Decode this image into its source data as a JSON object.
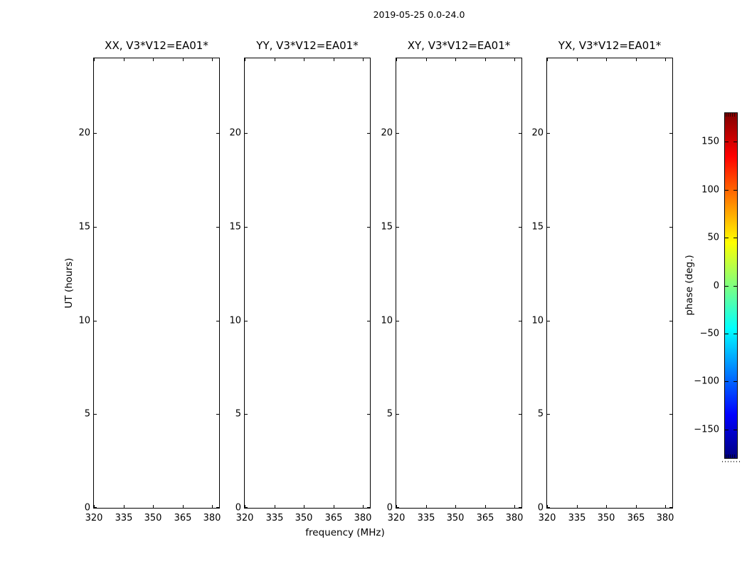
{
  "figure": {
    "background": "#ffffff",
    "text_color": "#000000"
  },
  "chart_data": {
    "type": "heatmap",
    "title": "2019-05-25 0.0-24.0",
    "xlabel": "frequency (MHz)",
    "ylabel": "UT (hours)",
    "grid": false,
    "panels": [
      {
        "key": "xx",
        "title": "XX, V3*V12=EA01*"
      },
      {
        "key": "yy",
        "title": "YY, V3*V12=EA01*"
      },
      {
        "key": "xy",
        "title": "XY, V3*V12=EA01*"
      },
      {
        "key": "yx",
        "title": "YX, V3*V12=EA01*"
      }
    ],
    "x_range": [
      320,
      383.6
    ],
    "x_ticks": [
      320,
      335,
      350,
      365,
      380
    ],
    "x_tick_labels": [
      "320",
      "335",
      "350",
      "365",
      "380"
    ],
    "y_range": [
      0,
      24
    ],
    "y_ticks": [
      0,
      5,
      10,
      15,
      20
    ],
    "y_tick_labels": [
      "0",
      "5",
      "10",
      "15",
      "20"
    ],
    "values": [],
    "note": "all four panels are empty (no data plotted, white interior)",
    "colorbar": {
      "label": "phase (deg.)",
      "range": [
        -180,
        180
      ],
      "ticks": [
        150,
        100,
        50,
        0,
        -50,
        -100,
        -150
      ],
      "tick_labels": [
        "150",
        "100",
        "50",
        "0",
        "−50",
        "−100",
        "−150"
      ],
      "colormap": "jet",
      "gradient_stops": [
        [
          "0%",
          "#800000"
        ],
        [
          "12.5%",
          "#ff0000"
        ],
        [
          "37.5%",
          "#ffff00"
        ],
        [
          "62.5%",
          "#00ffff"
        ],
        [
          "87.5%",
          "#0000ff"
        ],
        [
          "100%",
          "#000080"
        ]
      ]
    }
  }
}
